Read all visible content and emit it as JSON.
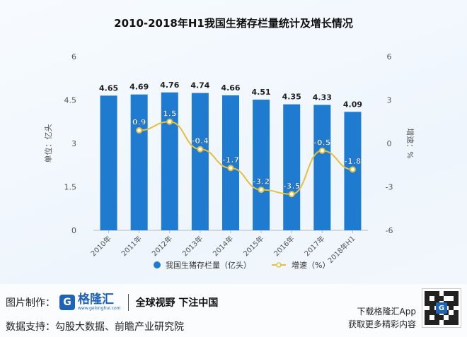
{
  "chart_data": {
    "type": "bar",
    "title": "2010-2018年H1我国生猪存栏量统计及增长情况",
    "categories": [
      "2010年",
      "2011年",
      "2012年",
      "2013年",
      "2014年",
      "2015年",
      "2016年",
      "2017年",
      "2018年H1"
    ],
    "series": [
      {
        "name": "我国生猪存栏量（亿头）",
        "type": "bar",
        "axis": "left",
        "values": [
          4.65,
          4.69,
          4.76,
          4.74,
          4.66,
          4.51,
          4.35,
          4.33,
          4.09
        ],
        "labels": [
          "4.65",
          "4.69",
          "4.76",
          "4.74",
          "4.66",
          "4.51",
          "4.35",
          "4.33",
          "4.09"
        ]
      },
      {
        "name": "增速（%）",
        "type": "line",
        "axis": "right",
        "values": [
          null,
          0.9,
          1.5,
          -0.4,
          -1.7,
          -3.2,
          -3.5,
          -0.5,
          -1.8
        ],
        "labels": [
          "",
          "0.9",
          "1.5",
          "-0.4",
          "-1.7",
          "-3.2",
          "-3.5",
          "-0.5",
          "-1.8"
        ]
      }
    ],
    "ylabel": "单位：亿头",
    "y2label": "增速：%",
    "ylim": [
      0,
      6
    ],
    "y2lim": [
      -6,
      6
    ],
    "yticks": [
      "0",
      "1.5",
      "3",
      "4.5",
      "6"
    ],
    "y2ticks": [
      "-6",
      "-3",
      "0",
      "3",
      "6"
    ],
    "grid": false,
    "legend_position": "bottom",
    "colors": {
      "bar": "#1f7bd0",
      "line": "#e8bf3a",
      "marker_fill": "#ffffff",
      "axis_text": "#555555"
    }
  },
  "footer": {
    "made_by": "图片制作：",
    "logo_char": "G",
    "logo_name": "格隆汇",
    "logo_url": "www.gelonghui.com",
    "slogan": "全球视野 下注中国",
    "data_source": "数据支持：勾股大数据、前瞻产业研究院",
    "app_line1": "下载格隆汇App",
    "app_line2": "获取更多精彩内容",
    "qr_logo": "G"
  }
}
